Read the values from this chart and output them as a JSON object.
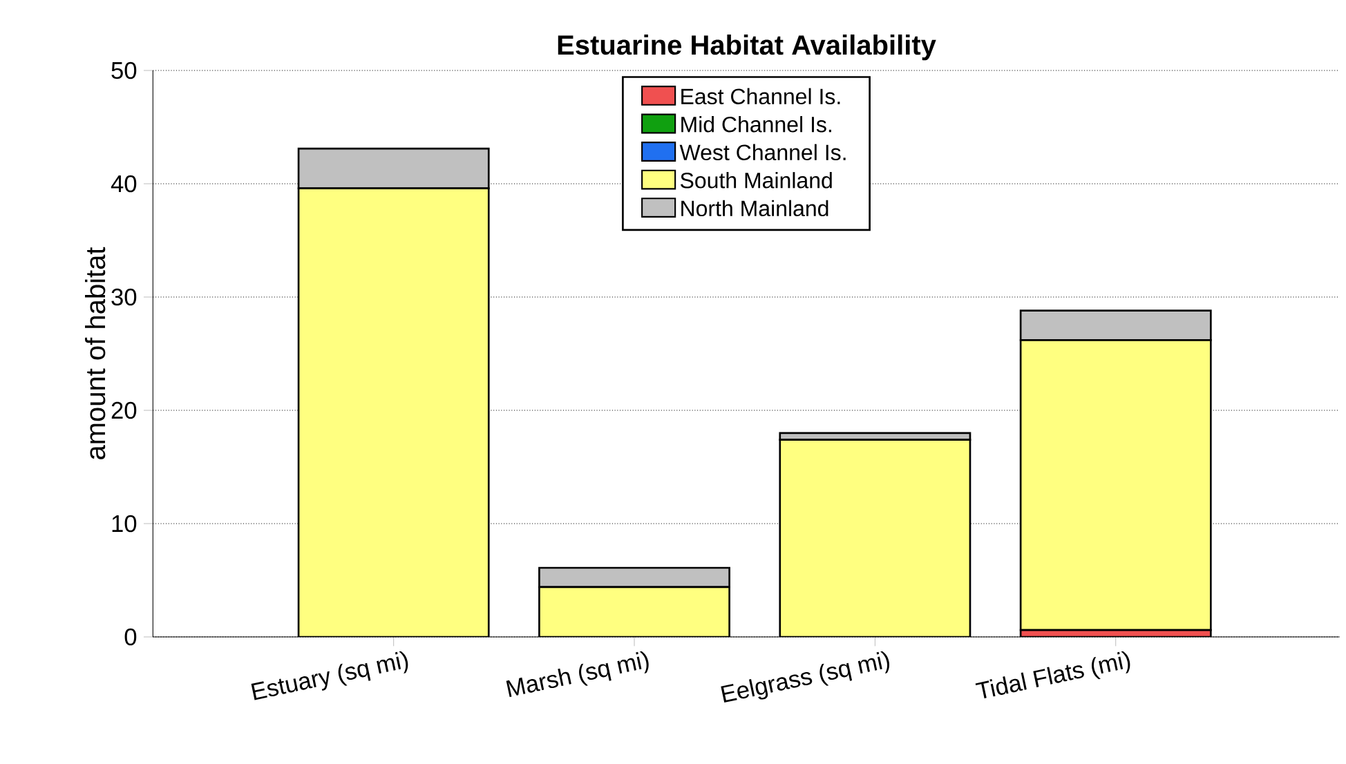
{
  "chart_data": {
    "type": "bar",
    "title": "Estuarine Habitat Availability",
    "ylabel": "amount of habitat",
    "categories": [
      "Estuary (sq mi)",
      "Marsh (sq mi)",
      "Eelgrass (sq mi)",
      "Tidal Flats (mi)"
    ],
    "stacked": true,
    "series": [
      {
        "name": "East Channel Is.",
        "color": "#f05050",
        "values": [
          0,
          0,
          0,
          0.6
        ]
      },
      {
        "name": "Mid Channel Is.",
        "color": "#10a010",
        "values": [
          0,
          0,
          0,
          0
        ]
      },
      {
        "name": "West Channel Is.",
        "color": "#2070f0",
        "values": [
          0,
          0,
          0,
          0
        ]
      },
      {
        "name": "South Mainland",
        "color": "#ffff80",
        "values": [
          39.6,
          4.4,
          17.4,
          25.6
        ]
      },
      {
        "name": "North Mainland",
        "color": "#c0c0c0",
        "values": [
          3.5,
          1.7,
          0.6,
          2.6
        ]
      }
    ],
    "ylim": [
      0,
      50
    ],
    "yticks": [
      0,
      10,
      20,
      30,
      40,
      50
    ],
    "grid": "y",
    "legend": "top"
  }
}
